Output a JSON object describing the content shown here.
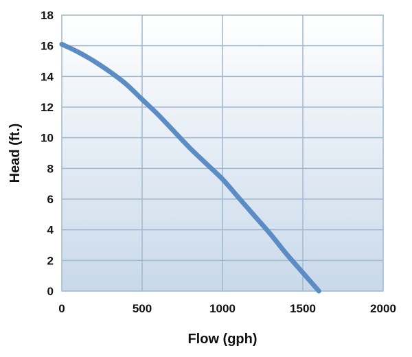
{
  "chart_data": {
    "type": "line",
    "title": "",
    "xlabel": "Flow (gph)",
    "ylabel": "Head (ft.)",
    "xlim": [
      0,
      2000
    ],
    "ylim": [
      0,
      18
    ],
    "x_ticks": [
      "0",
      "500",
      "1000",
      "1500",
      "2000"
    ],
    "y_ticks": [
      "0",
      "2",
      "4",
      "6",
      "8",
      "10",
      "12",
      "14",
      "16",
      "18"
    ],
    "grid": true,
    "legend": "none",
    "series": [
      {
        "color": "#5b8cc3",
        "x": [
          0,
          100,
          200,
          300,
          400,
          500,
          600,
          700,
          800,
          900,
          1000,
          1100,
          1200,
          1300,
          1400,
          1500,
          1600
        ],
        "y": [
          16.1,
          15.6,
          15.0,
          14.3,
          13.5,
          12.5,
          11.5,
          10.4,
          9.3,
          8.3,
          7.3,
          6.1,
          4.9,
          3.7,
          2.4,
          1.2,
          0.0
        ]
      }
    ],
    "plot_gradient_colors": [
      "#ffffff",
      "#c9d9ea"
    ]
  }
}
